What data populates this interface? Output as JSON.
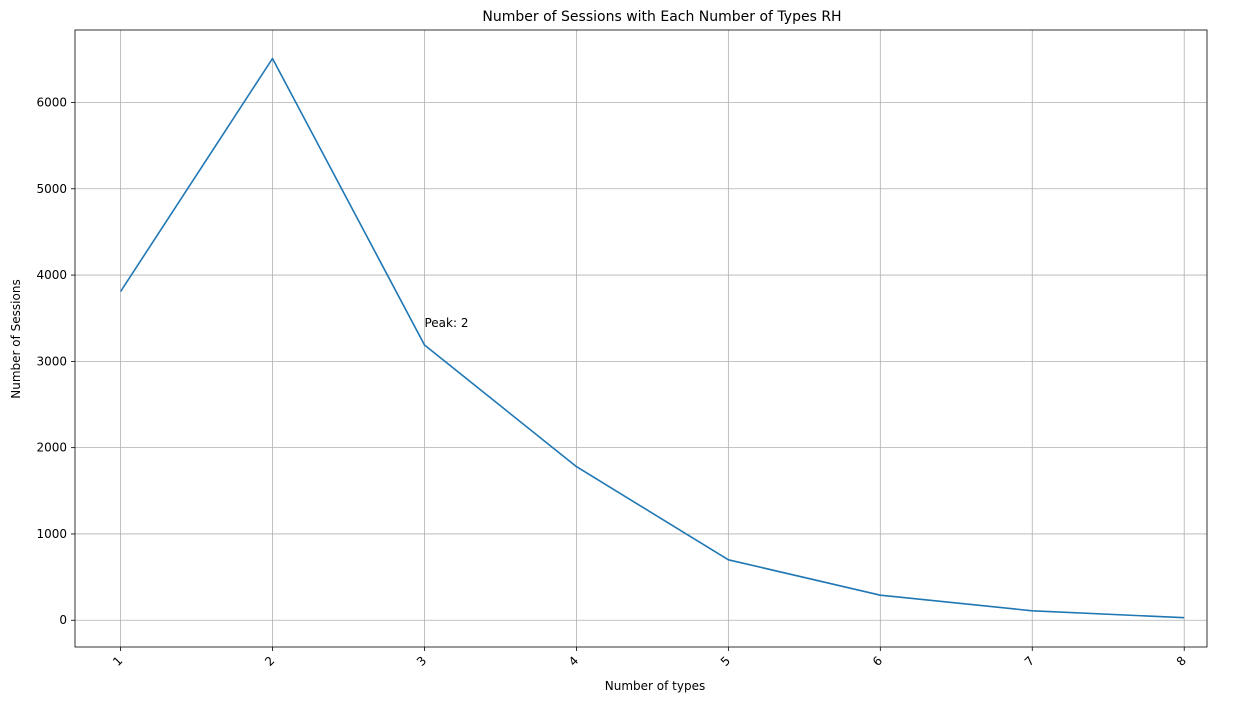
{
  "chart_data": {
    "type": "line",
    "title": "Number of Sessions with Each Number of Types RH",
    "xlabel": "Number of types",
    "ylabel": "Number of Sessions",
    "x": [
      1,
      2,
      3,
      4,
      5,
      6,
      7,
      8
    ],
    "x_tick_labels": [
      "1",
      "2",
      "3",
      "4",
      "5",
      "6",
      "7",
      "8"
    ],
    "xlim": [
      0.7,
      8.15
    ],
    "y_ticks": [
      0,
      1000,
      2000,
      3000,
      4000,
      5000,
      6000
    ],
    "y_tick_labels": [
      "0",
      "1000",
      "2000",
      "3000",
      "4000",
      "5000",
      "6000"
    ],
    "ylim": [
      -310,
      6840
    ],
    "grid": true,
    "series": [
      {
        "color": "#1f77b4",
        "values": [
          3810,
          6510,
          3190,
          1780,
          700,
          290,
          110,
          30
        ]
      }
    ],
    "annotations": [
      {
        "text": "Peak: 2",
        "x": 3,
        "y": 3400
      }
    ]
  }
}
